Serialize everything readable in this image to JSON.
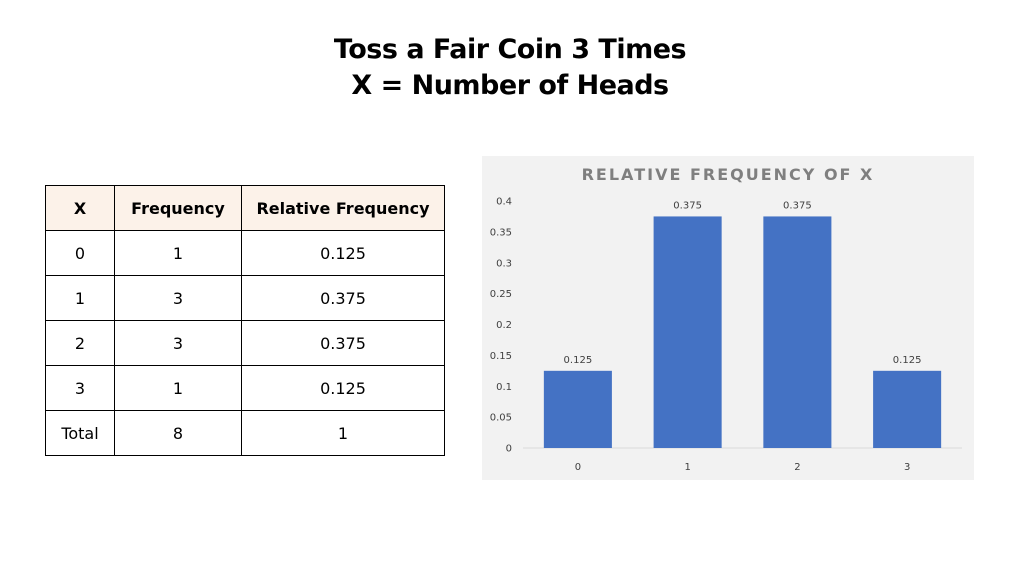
{
  "title": {
    "line1": "Toss a Fair Coin 3 Times",
    "line2": "X = Number of Heads"
  },
  "table": {
    "headers": [
      "X",
      "Frequency",
      "Relative Frequency"
    ],
    "rows": [
      [
        "0",
        "1",
        "0.125"
      ],
      [
        "1",
        "3",
        "0.375"
      ],
      [
        "2",
        "3",
        "0.375"
      ],
      [
        "3",
        "1",
        "0.125"
      ],
      [
        "Total",
        "8",
        "1"
      ]
    ]
  },
  "chart_data": {
    "type": "bar",
    "title": "RELATIVE FREQUENCY OF X",
    "categories": [
      "0",
      "1",
      "2",
      "3"
    ],
    "values": [
      0.125,
      0.375,
      0.375,
      0.125
    ],
    "data_labels": [
      "0.125",
      "0.375",
      "0.375",
      "0.125"
    ],
    "ylim": [
      0,
      0.4
    ],
    "yticks": [
      "0",
      "0.05",
      "0.1",
      "0.15",
      "0.2",
      "0.25",
      "0.3",
      "0.35",
      "0.4"
    ],
    "grid": false,
    "legend": "none",
    "bar_color": "#4472c4"
  }
}
